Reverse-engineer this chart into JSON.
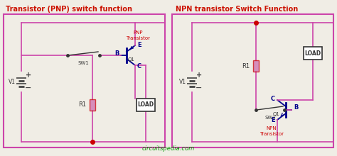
{
  "bg_color": "#f0ede5",
  "title_pnp": "Transistor (PNP) switch function",
  "title_npn": "NPN transistor Switch Function",
  "title_color": "#cc1100",
  "circuit_color": "#cc44aa",
  "wire_color": "#cc44aa",
  "label_color": "#333333",
  "red_dot_color": "#cc0000",
  "load_color": "#333333",
  "transistor_color": "#00008B",
  "battery_color": "#444444",
  "resistor_color": "#cc0000",
  "resistor_body_color": "#cc66aa",
  "footer_color": "#009900",
  "footer_text": "circuitspedia.com",
  "pnp_label": "PNP\nTransistor",
  "npn_label": "NPN\nTransistor"
}
